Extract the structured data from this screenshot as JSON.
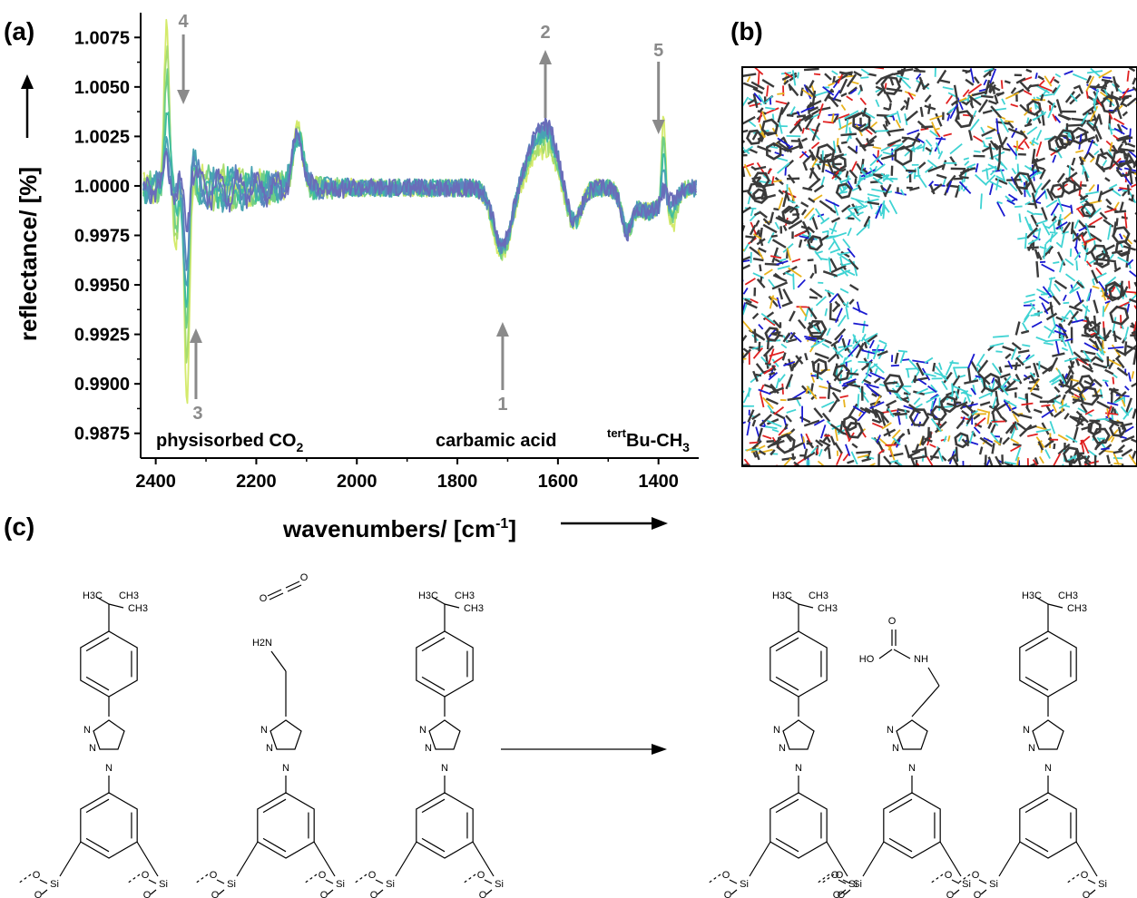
{
  "panels": {
    "a": "(a)",
    "b": "(b)",
    "c": "(c)"
  },
  "chart_data": {
    "type": "line",
    "xlabel": "wavenumbers/ [cm-1]",
    "xlabel_main": "wavenumbers/ [cm",
    "xlabel_sup": "-1",
    "xlabel_end": "]",
    "ylabel": "reflectance/ [%]",
    "xlim": [
      2430,
      1320
    ],
    "x_reversed": true,
    "ylim": [
      0.98625,
      1.00875
    ],
    "x_ticks": [
      2400,
      2200,
      2000,
      1800,
      1600,
      1400
    ],
    "y_ticks": [
      0.9875,
      0.99,
      0.9925,
      0.995,
      0.9975,
      1.0,
      1.0025,
      1.005,
      1.0075
    ],
    "y_tick_labels": [
      "0.9875",
      "0.9900",
      "0.9925",
      "0.9950",
      "0.9975",
      "1.0000",
      "1.0025",
      "1.0050",
      "1.0075"
    ],
    "grid": false,
    "series_colors": [
      "#d4ea6b",
      "#a9dd6e",
      "#70cf86",
      "#3fbca0",
      "#48a2b3",
      "#5a86bd",
      "#6a6cb9"
    ],
    "series_scales": [
      1.0,
      0.82,
      0.66,
      0.52,
      0.38,
      0.25,
      0.14
    ],
    "series_carbamic": [
      0.6,
      0.7,
      0.8,
      0.88,
      0.95,
      1.0,
      1.04
    ],
    "region_labels": [
      {
        "text": "physisorbed CO",
        "sub": "2",
        "x": 2220
      },
      {
        "text": "carbamic acid",
        "x": 1670
      },
      {
        "text": "Bu-CH",
        "sup": "tert",
        "sub": "3",
        "x": 1395
      }
    ],
    "arrows": [
      {
        "label": "1",
        "x": 1710,
        "direction": "up"
      },
      {
        "label": "2",
        "x": 1625,
        "direction": "up"
      },
      {
        "label": "3",
        "x": 2320,
        "direction": "up"
      },
      {
        "label": "4",
        "x": 2345,
        "direction": "down"
      },
      {
        "label": "5",
        "x": 1400,
        "direction": "down"
      }
    ]
  },
  "simulation_colors": {
    "frame": "#000000",
    "carbon": "#3a3a3a",
    "hydrogen": "#3fd3d3",
    "nitrogen": "#1a1ad0",
    "oxygen": "#e02020",
    "silicon": "#e8b21c"
  },
  "scheme": {
    "labels": {
      "tbu_h3c": "H3C",
      "tbu_ch3": "CH3",
      "h2n": "H2N",
      "n": "N",
      "o": "O",
      "si": "Si",
      "ho": "HO",
      "nh": "NH",
      "c": "C"
    }
  }
}
